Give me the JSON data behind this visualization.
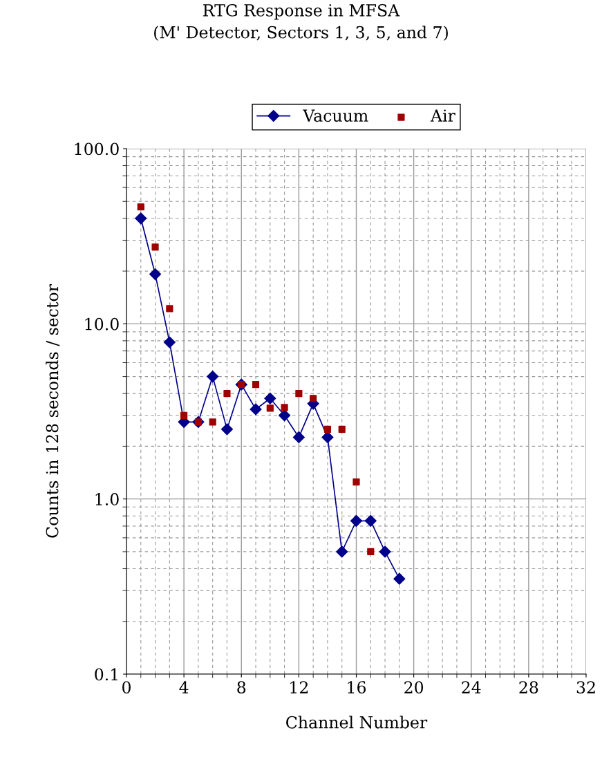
{
  "chart_data": {
    "type": "line",
    "title": "RTG Response in MFSA\n(M' Detector, Sectors 1, 3, 5, and 7)",
    "xlabel": "Channel Number",
    "ylabel": "Counts in 128 seconds / sector",
    "log": true,
    "grid": true,
    "legend": "top",
    "xlim": [
      0,
      32
    ],
    "xticks": [
      0,
      4,
      8,
      12,
      16,
      20,
      24,
      28,
      32
    ],
    "ylim": [
      0.1,
      100
    ],
    "yticks": [
      {
        "value": 0.1,
        "label": "0.1"
      },
      {
        "value": 1,
        "label": "1.0"
      },
      {
        "value": 10,
        "label": "10.0"
      },
      {
        "value": 100,
        "label": "100.0"
      }
    ],
    "series": [
      {
        "name": "Vacuum",
        "marker": "diamond",
        "color": "#00008b",
        "x": [
          1,
          2,
          3,
          4,
          5,
          6,
          7,
          8,
          9,
          10,
          11,
          12,
          13,
          14,
          15,
          16,
          17,
          18,
          19
        ],
        "values": [
          40,
          19.2,
          7.85,
          2.75,
          2.75,
          5.0,
          2.5,
          4.5,
          3.25,
          3.75,
          3.0,
          2.25,
          3.5,
          2.25,
          0.5,
          0.75,
          0.75,
          0.5,
          0.35
        ]
      },
      {
        "name": "Air",
        "type": "scatter",
        "marker": "square",
        "color": "#a00000",
        "x": [
          1,
          2,
          3,
          4,
          5,
          6,
          7,
          8,
          9,
          10,
          11,
          12,
          13,
          14,
          15,
          16,
          17
        ],
        "values": [
          46.5,
          27.4,
          12.2,
          3.0,
          2.75,
          2.75,
          4.0,
          4.5,
          4.5,
          3.3,
          3.33,
          4.0,
          3.75,
          2.5,
          2.5,
          1.25,
          0.5
        ]
      }
    ]
  }
}
